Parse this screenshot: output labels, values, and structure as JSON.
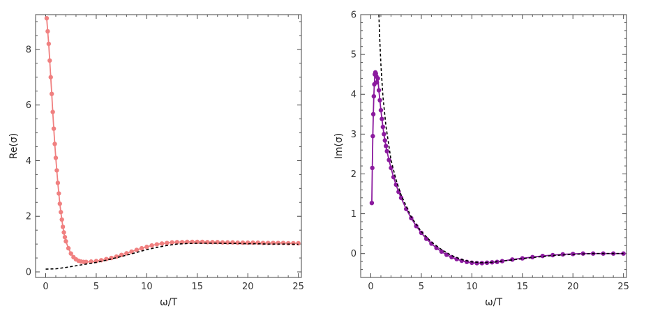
{
  "chart_data": [
    {
      "type": "line",
      "xlabel": "ω/T",
      "ylabel": "Re(σ)",
      "xlim": [
        -1,
        25.3
      ],
      "ylim": [
        -0.2,
        9.25
      ],
      "xticks": [
        0,
        5,
        10,
        15,
        20,
        25
      ],
      "yticks": [
        0,
        2,
        4,
        6,
        8
      ],
      "grid": false,
      "series": [
        {
          "style": "markers-with-line",
          "color": "#f08080",
          "x": [
            0.1,
            0.2,
            0.3,
            0.4,
            0.5,
            0.6,
            0.7,
            0.8,
            0.9,
            1.0,
            1.1,
            1.2,
            1.3,
            1.4,
            1.5,
            1.6,
            1.7,
            1.8,
            1.9,
            2.0,
            2.25,
            2.5,
            2.75,
            3.0,
            3.25,
            3.5,
            3.75,
            4.0,
            4.5,
            5.0,
            5.5,
            6.0,
            6.5,
            7.0,
            7.5,
            8.0,
            8.5,
            9.0,
            9.5,
            10.0,
            10.5,
            11.0,
            11.5,
            12.0,
            12.5,
            13.0,
            13.5,
            14.0,
            14.5,
            15.0,
            15.5,
            16.0,
            16.5,
            17.0,
            17.5,
            18.0,
            18.5,
            19.0,
            19.5,
            20.0,
            20.5,
            21.0,
            21.5,
            22.0,
            22.5,
            23.0,
            23.5,
            24.0,
            24.5,
            25.0
          ],
          "y": [
            9.12,
            8.65,
            8.2,
            7.6,
            7.0,
            6.4,
            5.75,
            5.15,
            4.6,
            4.1,
            3.65,
            3.2,
            2.82,
            2.45,
            2.15,
            1.88,
            1.62,
            1.42,
            1.25,
            1.1,
            0.85,
            0.66,
            0.53,
            0.45,
            0.4,
            0.37,
            0.36,
            0.36,
            0.37,
            0.39,
            0.42,
            0.46,
            0.5,
            0.55,
            0.61,
            0.67,
            0.73,
            0.79,
            0.85,
            0.9,
            0.95,
            0.99,
            1.02,
            1.04,
            1.06,
            1.07,
            1.07,
            1.08,
            1.08,
            1.08,
            1.08,
            1.07,
            1.07,
            1.07,
            1.06,
            1.06,
            1.06,
            1.05,
            1.05,
            1.05,
            1.05,
            1.05,
            1.04,
            1.04,
            1.04,
            1.04,
            1.04,
            1.03,
            1.03,
            1.03
          ]
        },
        {
          "style": "dashed",
          "color": "#000000",
          "x": [
            0.0,
            1,
            2,
            3,
            4,
            5,
            6,
            7,
            8,
            9,
            10,
            11,
            12,
            13,
            14,
            15,
            16,
            17,
            18,
            19,
            20,
            21,
            22,
            23,
            24,
            25
          ],
          "y": [
            0.1,
            0.11,
            0.16,
            0.22,
            0.28,
            0.34,
            0.42,
            0.51,
            0.6,
            0.7,
            0.8,
            0.88,
            0.95,
            1.0,
            1.02,
            1.03,
            1.03,
            1.03,
            1.02,
            1.02,
            1.01,
            1.01,
            1.0,
            1.0,
            1.0,
            0.99
          ]
        }
      ]
    },
    {
      "type": "line",
      "xlabel": "ω/T",
      "ylabel": "Im(σ)",
      "xlim": [
        -1,
        25.3
      ],
      "ylim": [
        -0.6,
        6.0
      ],
      "xticks": [
        0,
        5,
        10,
        15,
        20,
        25
      ],
      "yticks": [
        0,
        1,
        2,
        3,
        4,
        5,
        6
      ],
      "grid": false,
      "series": [
        {
          "style": "markers-with-line",
          "color": "#8b1a9e",
          "x": [
            0.1,
            0.15,
            0.2,
            0.25,
            0.3,
            0.35,
            0.4,
            0.45,
            0.5,
            0.55,
            0.6,
            0.7,
            0.8,
            0.9,
            1.0,
            1.1,
            1.2,
            1.3,
            1.4,
            1.5,
            1.6,
            1.8,
            2.0,
            2.25,
            2.5,
            2.75,
            3.0,
            3.5,
            4.0,
            4.5,
            5.0,
            5.5,
            6.0,
            6.5,
            7.0,
            7.5,
            8.0,
            8.5,
            9.0,
            9.5,
            10.0,
            10.5,
            11.0,
            11.5,
            12.0,
            12.5,
            13.0,
            14.0,
            15.0,
            16.0,
            17.0,
            18.0,
            19.0,
            20.0,
            21.0,
            22.0,
            23.0,
            24.0,
            25.0
          ],
          "y": [
            1.27,
            2.15,
            2.95,
            3.5,
            3.95,
            4.25,
            4.5,
            4.55,
            4.52,
            4.45,
            4.3,
            4.4,
            4.1,
            3.85,
            3.6,
            3.38,
            3.18,
            3.0,
            2.84,
            2.7,
            2.57,
            2.35,
            2.15,
            1.92,
            1.73,
            1.55,
            1.4,
            1.12,
            0.89,
            0.69,
            0.52,
            0.37,
            0.25,
            0.14,
            0.05,
            -0.03,
            -0.09,
            -0.14,
            -0.18,
            -0.21,
            -0.23,
            -0.24,
            -0.24,
            -0.23,
            -0.22,
            -0.21,
            -0.19,
            -0.15,
            -0.12,
            -0.09,
            -0.06,
            -0.04,
            -0.02,
            -0.01,
            0.0,
            0.0,
            0.0,
            0.0,
            0.0
          ]
        },
        {
          "style": "dashed",
          "color": "#000000",
          "x": [
            0.8,
            0.9,
            1.0,
            1.2,
            1.5,
            2.0,
            2.5,
            3.0,
            4.0,
            5.0,
            6.0,
            7.0,
            8.0,
            9.0,
            10.0,
            11.0,
            12.0,
            13.0,
            14.0,
            15.0,
            16.0,
            18.0,
            20.0,
            22.0,
            24.0,
            25.0
          ],
          "y": [
            6.0,
            5.3,
            4.75,
            3.95,
            3.2,
            2.35,
            1.85,
            1.47,
            0.92,
            0.55,
            0.29,
            0.1,
            -0.05,
            -0.15,
            -0.21,
            -0.23,
            -0.22,
            -0.19,
            -0.16,
            -0.13,
            -0.1,
            -0.05,
            -0.02,
            0.0,
            0.0,
            0.0
          ]
        }
      ]
    }
  ]
}
